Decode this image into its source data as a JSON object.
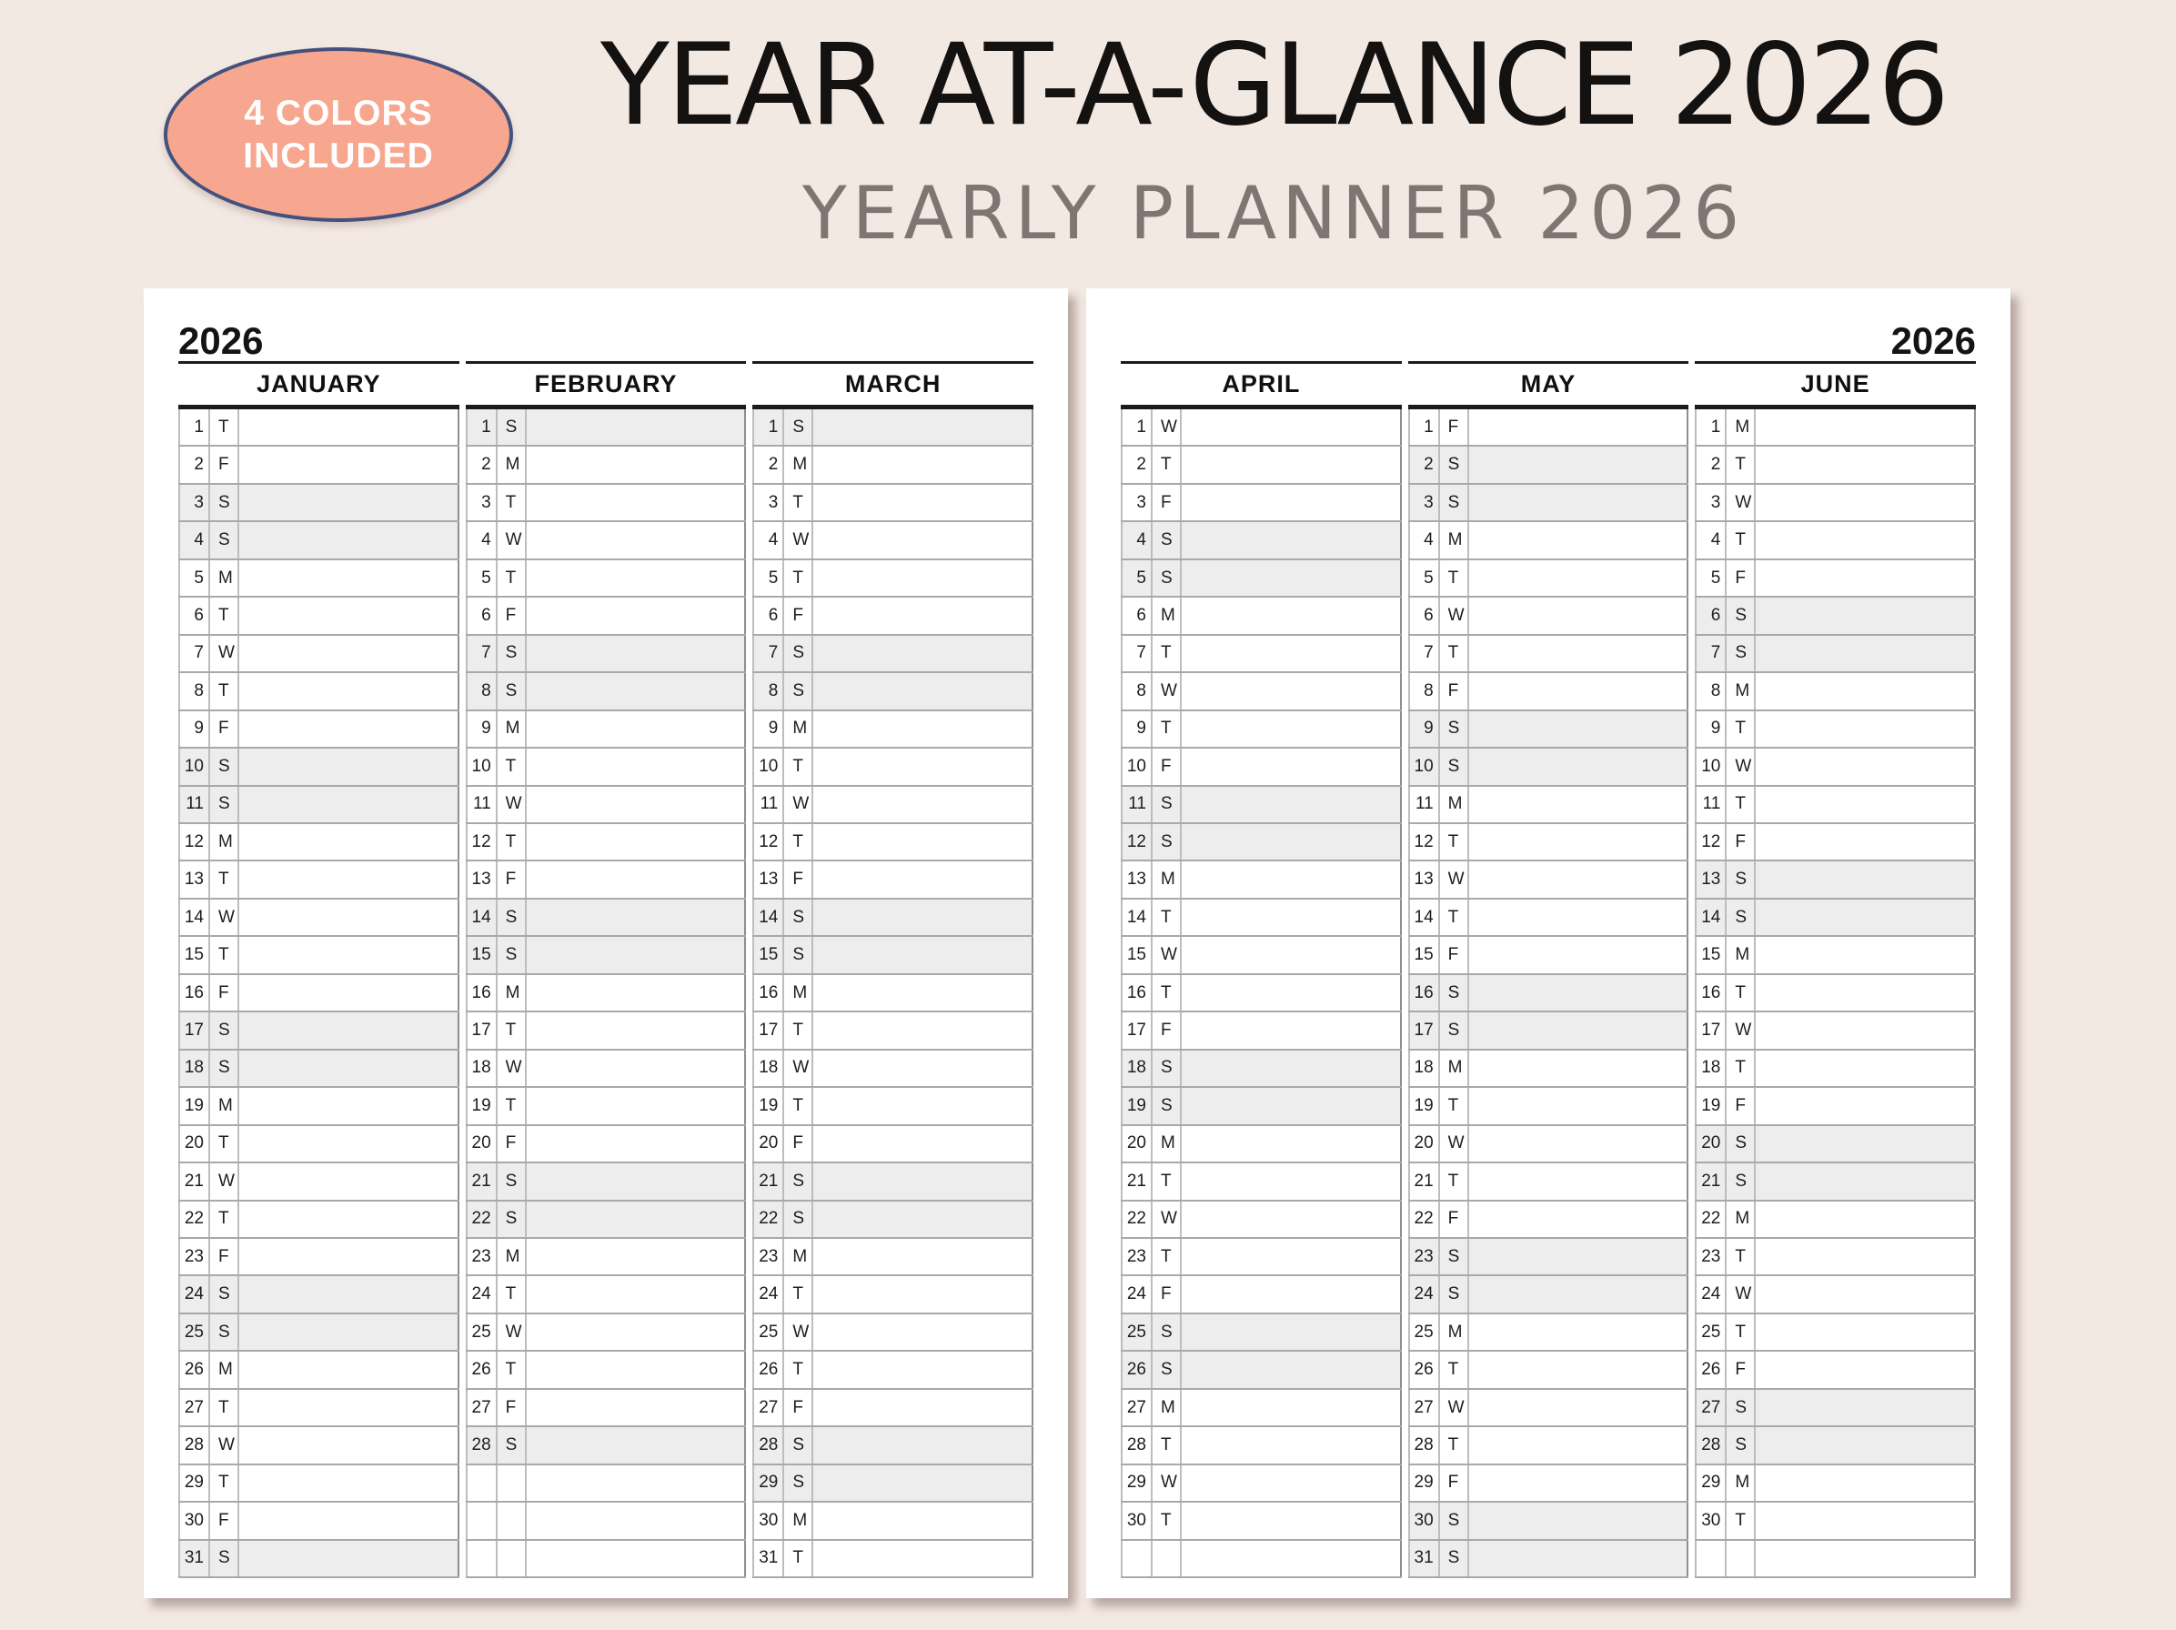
{
  "badge": {
    "line1": "4 COLORS",
    "line2": "INCLUDED"
  },
  "header": {
    "title": "YEAR AT-A-GLANCE 2026",
    "subtitle": "YEARLY PLANNER 2026"
  },
  "colors": {
    "background": "#f3e9e3",
    "badge_fill": "#f7a78f",
    "badge_border": "#44517c",
    "title_black": "#141111",
    "subtitle_gray": "#7e7672",
    "weekend_shade": "#ededed",
    "grid_line_gray": "#a9a9a9",
    "header_rule_black": "#1b1b1b",
    "page_white": "#ffffff"
  },
  "grid_rows": 31,
  "pages": [
    {
      "side": "left",
      "year_label": "2026",
      "months": [
        {
          "name": "JANUARY",
          "days": [
            [
              1,
              "T",
              0
            ],
            [
              2,
              "F",
              0
            ],
            [
              3,
              "S",
              1
            ],
            [
              4,
              "S",
              1
            ],
            [
              5,
              "M",
              0
            ],
            [
              6,
              "T",
              0
            ],
            [
              7,
              "W",
              0
            ],
            [
              8,
              "T",
              0
            ],
            [
              9,
              "F",
              0
            ],
            [
              10,
              "S",
              1
            ],
            [
              11,
              "S",
              1
            ],
            [
              12,
              "M",
              0
            ],
            [
              13,
              "T",
              0
            ],
            [
              14,
              "W",
              0
            ],
            [
              15,
              "T",
              0
            ],
            [
              16,
              "F",
              0
            ],
            [
              17,
              "S",
              1
            ],
            [
              18,
              "S",
              1
            ],
            [
              19,
              "M",
              0
            ],
            [
              20,
              "T",
              0
            ],
            [
              21,
              "W",
              0
            ],
            [
              22,
              "T",
              0
            ],
            [
              23,
              "F",
              0
            ],
            [
              24,
              "S",
              1
            ],
            [
              25,
              "S",
              1
            ],
            [
              26,
              "M",
              0
            ],
            [
              27,
              "T",
              0
            ],
            [
              28,
              "W",
              0
            ],
            [
              29,
              "T",
              0
            ],
            [
              30,
              "F",
              0
            ],
            [
              31,
              "S",
              1
            ]
          ]
        },
        {
          "name": "FEBRUARY",
          "days": [
            [
              1,
              "S",
              1
            ],
            [
              2,
              "M",
              0
            ],
            [
              3,
              "T",
              0
            ],
            [
              4,
              "W",
              0
            ],
            [
              5,
              "T",
              0
            ],
            [
              6,
              "F",
              0
            ],
            [
              7,
              "S",
              1
            ],
            [
              8,
              "S",
              1
            ],
            [
              9,
              "M",
              0
            ],
            [
              10,
              "T",
              0
            ],
            [
              11,
              "W",
              0
            ],
            [
              12,
              "T",
              0
            ],
            [
              13,
              "F",
              0
            ],
            [
              14,
              "S",
              1
            ],
            [
              15,
              "S",
              1
            ],
            [
              16,
              "M",
              0
            ],
            [
              17,
              "T",
              0
            ],
            [
              18,
              "W",
              0
            ],
            [
              19,
              "T",
              0
            ],
            [
              20,
              "F",
              0
            ],
            [
              21,
              "S",
              1
            ],
            [
              22,
              "S",
              1
            ],
            [
              23,
              "M",
              0
            ],
            [
              24,
              "T",
              0
            ],
            [
              25,
              "W",
              0
            ],
            [
              26,
              "T",
              0
            ],
            [
              27,
              "F",
              0
            ],
            [
              28,
              "S",
              1
            ]
          ]
        },
        {
          "name": "MARCH",
          "days": [
            [
              1,
              "S",
              1
            ],
            [
              2,
              "M",
              0
            ],
            [
              3,
              "T",
              0
            ],
            [
              4,
              "W",
              0
            ],
            [
              5,
              "T",
              0
            ],
            [
              6,
              "F",
              0
            ],
            [
              7,
              "S",
              1
            ],
            [
              8,
              "S",
              1
            ],
            [
              9,
              "M",
              0
            ],
            [
              10,
              "T",
              0
            ],
            [
              11,
              "W",
              0
            ],
            [
              12,
              "T",
              0
            ],
            [
              13,
              "F",
              0
            ],
            [
              14,
              "S",
              1
            ],
            [
              15,
              "S",
              1
            ],
            [
              16,
              "M",
              0
            ],
            [
              17,
              "T",
              0
            ],
            [
              18,
              "W",
              0
            ],
            [
              19,
              "T",
              0
            ],
            [
              20,
              "F",
              0
            ],
            [
              21,
              "S",
              1
            ],
            [
              22,
              "S",
              1
            ],
            [
              23,
              "M",
              0
            ],
            [
              24,
              "T",
              0
            ],
            [
              25,
              "W",
              0
            ],
            [
              26,
              "T",
              0
            ],
            [
              27,
              "F",
              0
            ],
            [
              28,
              "S",
              1
            ],
            [
              29,
              "S",
              1
            ],
            [
              30,
              "M",
              0
            ],
            [
              31,
              "T",
              0
            ]
          ]
        }
      ]
    },
    {
      "side": "right",
      "year_label": "2026",
      "months": [
        {
          "name": "APRIL",
          "days": [
            [
              1,
              "W",
              0
            ],
            [
              2,
              "T",
              0
            ],
            [
              3,
              "F",
              0
            ],
            [
              4,
              "S",
              1
            ],
            [
              5,
              "S",
              1
            ],
            [
              6,
              "M",
              0
            ],
            [
              7,
              "T",
              0
            ],
            [
              8,
              "W",
              0
            ],
            [
              9,
              "T",
              0
            ],
            [
              10,
              "F",
              0
            ],
            [
              11,
              "S",
              1
            ],
            [
              12,
              "S",
              1
            ],
            [
              13,
              "M",
              0
            ],
            [
              14,
              "T",
              0
            ],
            [
              15,
              "W",
              0
            ],
            [
              16,
              "T",
              0
            ],
            [
              17,
              "F",
              0
            ],
            [
              18,
              "S",
              1
            ],
            [
              19,
              "S",
              1
            ],
            [
              20,
              "M",
              0
            ],
            [
              21,
              "T",
              0
            ],
            [
              22,
              "W",
              0
            ],
            [
              23,
              "T",
              0
            ],
            [
              24,
              "F",
              0
            ],
            [
              25,
              "S",
              1
            ],
            [
              26,
              "S",
              1
            ],
            [
              27,
              "M",
              0
            ],
            [
              28,
              "T",
              0
            ],
            [
              29,
              "W",
              0
            ],
            [
              30,
              "T",
              0
            ]
          ]
        },
        {
          "name": "MAY",
          "days": [
            [
              1,
              "F",
              0
            ],
            [
              2,
              "S",
              1
            ],
            [
              3,
              "S",
              1
            ],
            [
              4,
              "M",
              0
            ],
            [
              5,
              "T",
              0
            ],
            [
              6,
              "W",
              0
            ],
            [
              7,
              "T",
              0
            ],
            [
              8,
              "F",
              0
            ],
            [
              9,
              "S",
              1
            ],
            [
              10,
              "S",
              1
            ],
            [
              11,
              "M",
              0
            ],
            [
              12,
              "T",
              0
            ],
            [
              13,
              "W",
              0
            ],
            [
              14,
              "T",
              0
            ],
            [
              15,
              "F",
              0
            ],
            [
              16,
              "S",
              1
            ],
            [
              17,
              "S",
              1
            ],
            [
              18,
              "M",
              0
            ],
            [
              19,
              "T",
              0
            ],
            [
              20,
              "W",
              0
            ],
            [
              21,
              "T",
              0
            ],
            [
              22,
              "F",
              0
            ],
            [
              23,
              "S",
              1
            ],
            [
              24,
              "S",
              1
            ],
            [
              25,
              "M",
              0
            ],
            [
              26,
              "T",
              0
            ],
            [
              27,
              "W",
              0
            ],
            [
              28,
              "T",
              0
            ],
            [
              29,
              "F",
              0
            ],
            [
              30,
              "S",
              1
            ],
            [
              31,
              "S",
              1
            ]
          ]
        },
        {
          "name": "JUNE",
          "days": [
            [
              1,
              "M",
              0
            ],
            [
              2,
              "T",
              0
            ],
            [
              3,
              "W",
              0
            ],
            [
              4,
              "T",
              0
            ],
            [
              5,
              "F",
              0
            ],
            [
              6,
              "S",
              1
            ],
            [
              7,
              "S",
              1
            ],
            [
              8,
              "M",
              0
            ],
            [
              9,
              "T",
              0
            ],
            [
              10,
              "W",
              0
            ],
            [
              11,
              "T",
              0
            ],
            [
              12,
              "F",
              0
            ],
            [
              13,
              "S",
              1
            ],
            [
              14,
              "S",
              1
            ],
            [
              15,
              "M",
              0
            ],
            [
              16,
              "T",
              0
            ],
            [
              17,
              "W",
              0
            ],
            [
              18,
              "T",
              0
            ],
            [
              19,
              "F",
              0
            ],
            [
              20,
              "S",
              1
            ],
            [
              21,
              "S",
              1
            ],
            [
              22,
              "M",
              0
            ],
            [
              23,
              "T",
              0
            ],
            [
              24,
              "W",
              0
            ],
            [
              25,
              "T",
              0
            ],
            [
              26,
              "F",
              0
            ],
            [
              27,
              "S",
              1
            ],
            [
              28,
              "S",
              1
            ],
            [
              29,
              "M",
              0
            ],
            [
              30,
              "T",
              0
            ]
          ]
        }
      ]
    }
  ]
}
